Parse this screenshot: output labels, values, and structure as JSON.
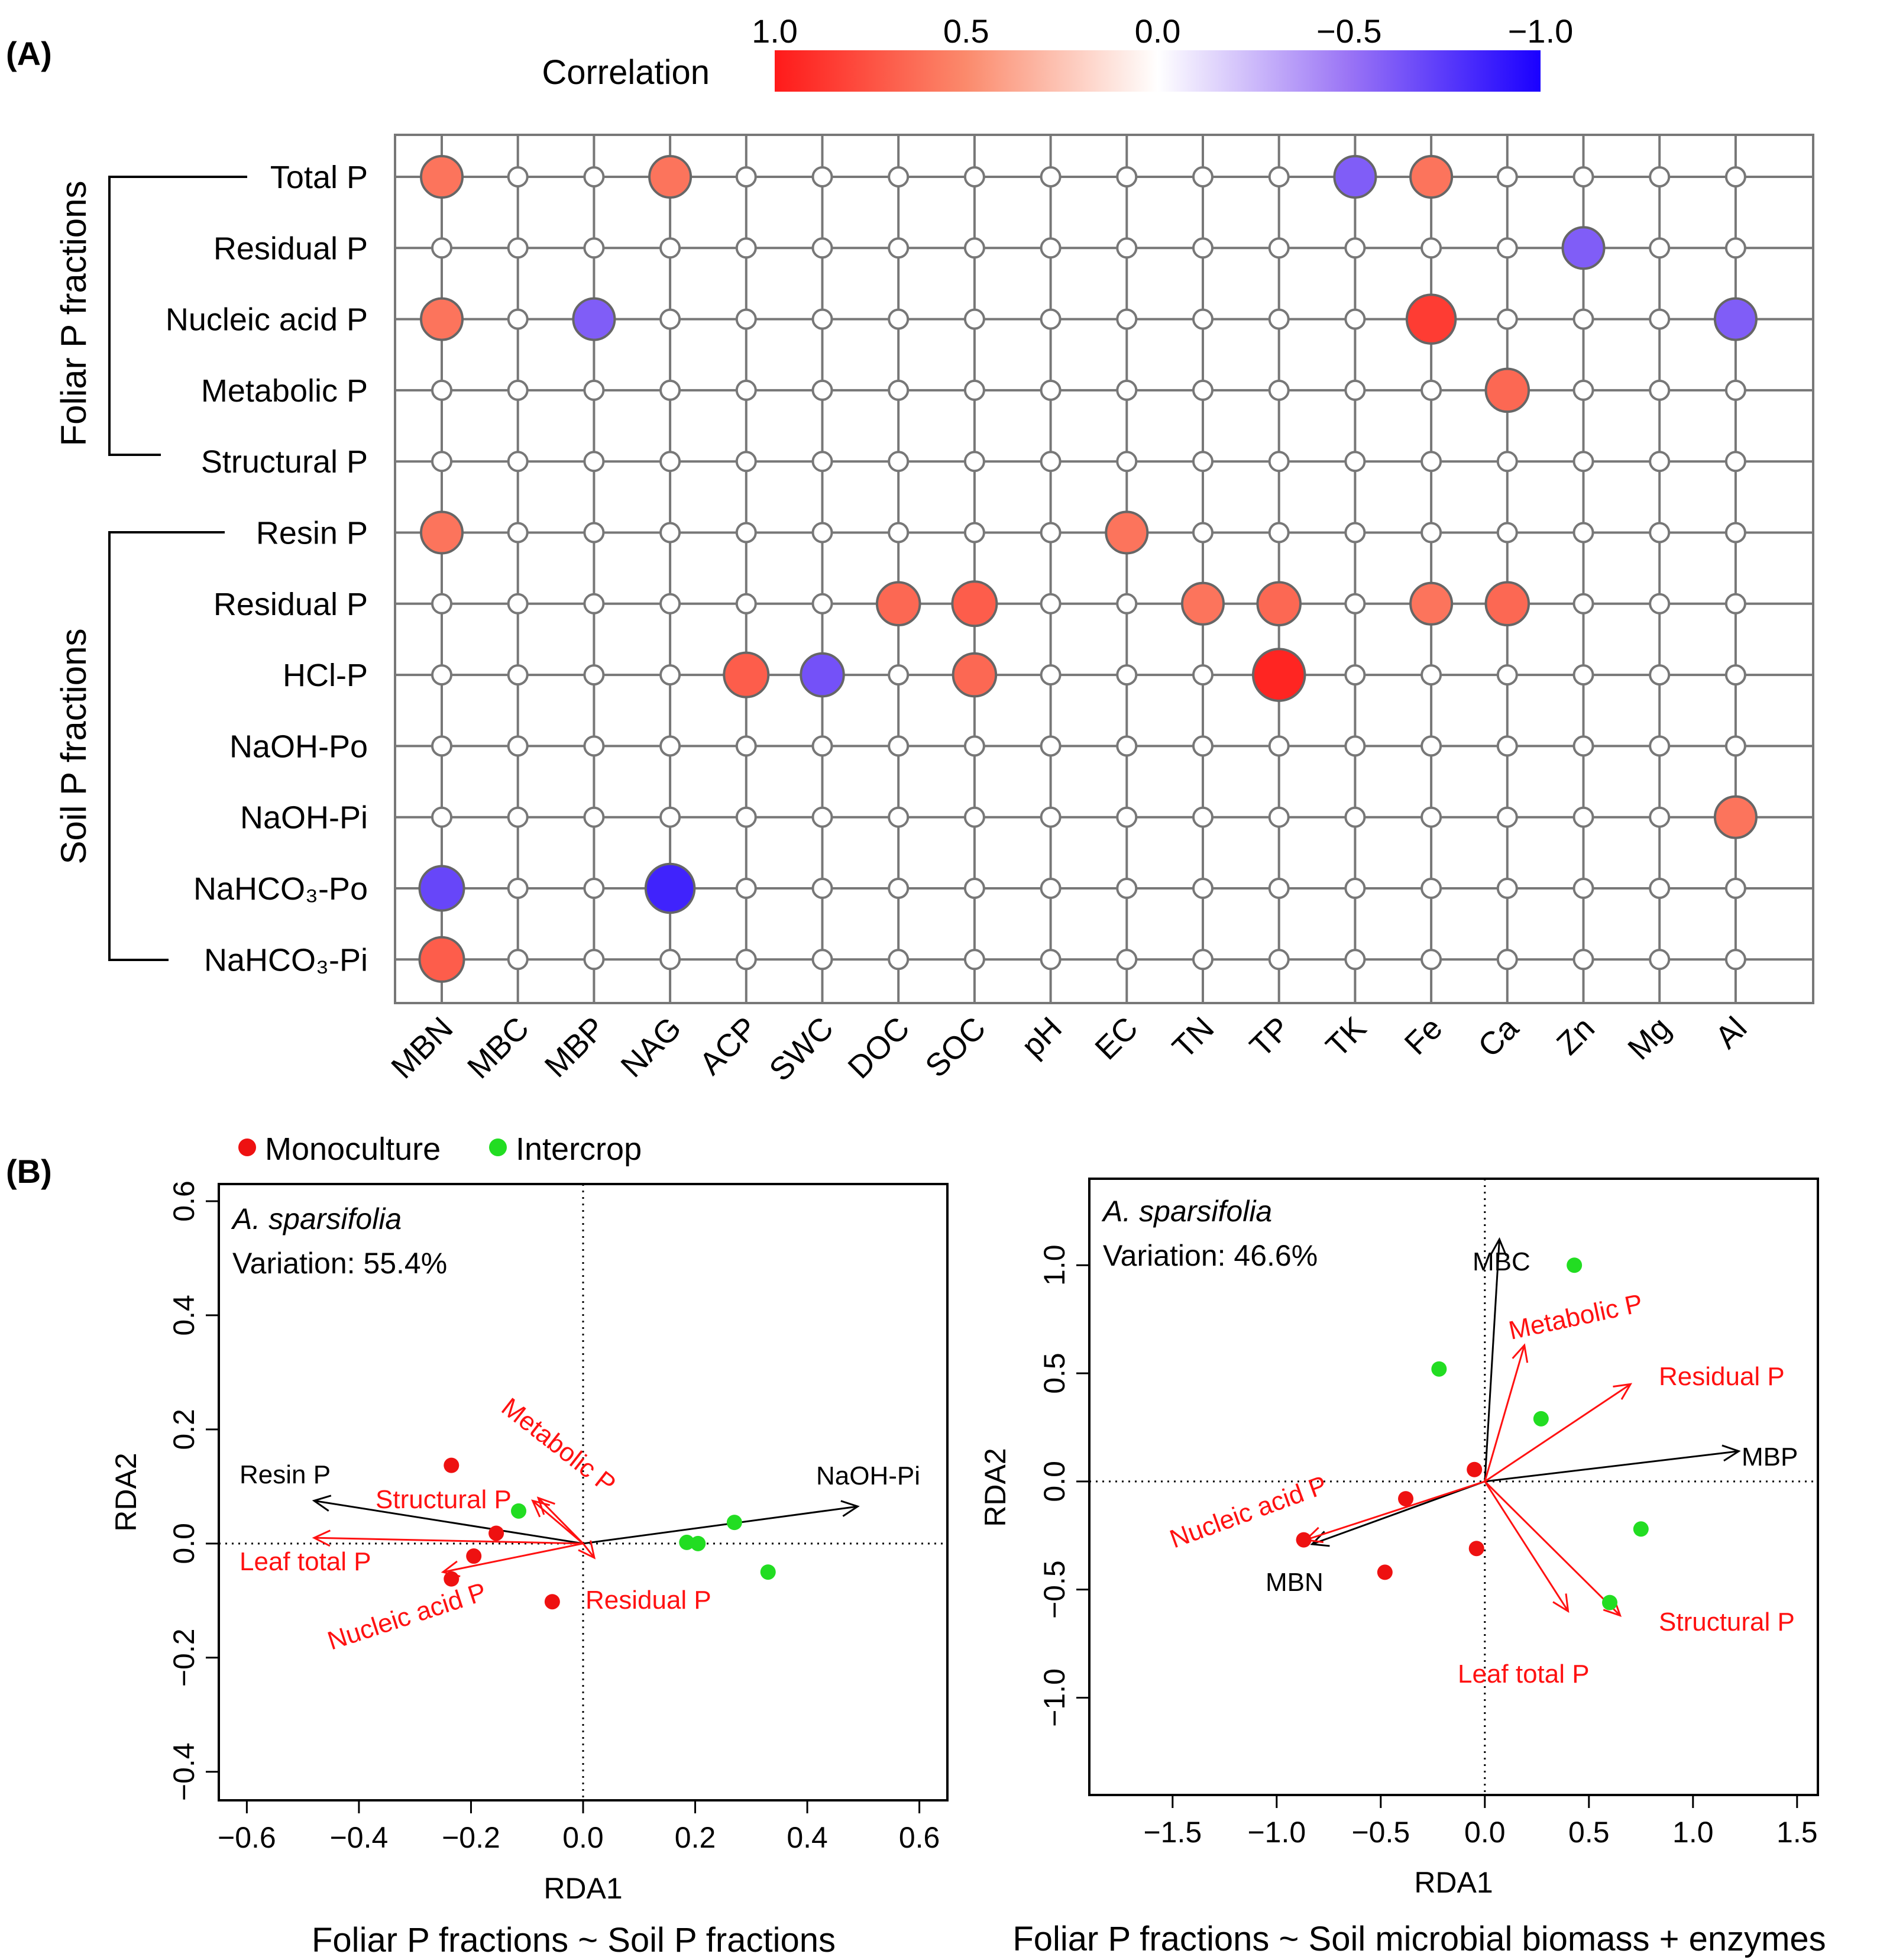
{
  "panel_a": {
    "label": "(A)",
    "colorbar": {
      "title": "Correlation",
      "ticks": [
        "1.0",
        "0.5",
        "0.0",
        "−0.5",
        "−1.0"
      ],
      "tick_values": [
        1.0,
        0.5,
        0.0,
        -0.5,
        -1.0
      ],
      "colors": [
        "#ff1a1a",
        "#fb8a6c",
        "#ffffff",
        "#9a74f5",
        "#1a00ff"
      ]
    },
    "groups": [
      {
        "label": "Foliar P fractions",
        "rows": [
          0,
          4
        ]
      },
      {
        "label": "Soil P fractions",
        "rows": [
          5,
          11
        ]
      }
    ]
  },
  "panel_b": {
    "label": "(B)",
    "legend": [
      {
        "label": "Monoculture",
        "color": "#ee1111"
      },
      {
        "label": "Intercrop",
        "color": "#22dd22"
      }
    ],
    "left": {
      "species": "A. sparsifolia",
      "variation": "Variation: 55.4%",
      "caption": "Foliar P fractions ~ Soil P fractions"
    },
    "right": {
      "species": "A. sparsifolia",
      "variation": "Variation: 46.6%",
      "caption": "Foliar P fractions ~ Soil microbial biomass + enzymes"
    }
  },
  "chart_data": [
    {
      "type": "heatmap",
      "title": "",
      "legend_title": "Correlation",
      "rows": [
        "Total P",
        "Residual P",
        "Nucleic acid P",
        "Metabolic P",
        "Structural P",
        "Resin P",
        "Residual P",
        "HCl-P",
        "NaOH-Po",
        "NaOH-Pi",
        "NaHCO₃-Po",
        "NaHCO₃-Pi"
      ],
      "columns": [
        "MBN",
        "MBC",
        "MBP",
        "NAG",
        "ACP",
        "SWC",
        "DOC",
        "SOC",
        "pH",
        "EC",
        "TN",
        "TP",
        "TK",
        "Fe",
        "Ca",
        "Zn",
        "Mg",
        "Al"
      ],
      "cells": [
        {
          "row": 0,
          "col": 0,
          "r": 0.6
        },
        {
          "row": 0,
          "col": 3,
          "r": 0.6
        },
        {
          "row": 0,
          "col": 12,
          "r": -0.6
        },
        {
          "row": 0,
          "col": 13,
          "r": 0.6
        },
        {
          "row": 1,
          "col": 15,
          "r": -0.6
        },
        {
          "row": 2,
          "col": 0,
          "r": 0.6
        },
        {
          "row": 2,
          "col": 2,
          "r": -0.6
        },
        {
          "row": 2,
          "col": 13,
          "r": 0.85
        },
        {
          "row": 2,
          "col": 17,
          "r": -0.6
        },
        {
          "row": 3,
          "col": 14,
          "r": 0.65
        },
        {
          "row": 5,
          "col": 0,
          "r": 0.6
        },
        {
          "row": 5,
          "col": 9,
          "r": 0.6
        },
        {
          "row": 6,
          "col": 6,
          "r": 0.65
        },
        {
          "row": 6,
          "col": 7,
          "r": 0.7
        },
        {
          "row": 6,
          "col": 10,
          "r": 0.6
        },
        {
          "row": 6,
          "col": 11,
          "r": 0.65
        },
        {
          "row": 6,
          "col": 13,
          "r": 0.6
        },
        {
          "row": 6,
          "col": 14,
          "r": 0.65
        },
        {
          "row": 7,
          "col": 4,
          "r": 0.7
        },
        {
          "row": 7,
          "col": 5,
          "r": -0.65
        },
        {
          "row": 7,
          "col": 7,
          "r": 0.65
        },
        {
          "row": 7,
          "col": 11,
          "r": 0.95
        },
        {
          "row": 9,
          "col": 17,
          "r": 0.6
        },
        {
          "row": 10,
          "col": 0,
          "r": -0.7
        },
        {
          "row": 10,
          "col": 3,
          "r": -0.85
        },
        {
          "row": 11,
          "col": 0,
          "r": 0.7
        }
      ]
    },
    {
      "type": "scatter",
      "title": "Foliar P fractions ~ Soil P fractions",
      "xlabel": "RDA1",
      "ylabel": "RDA2",
      "xlim": [
        -0.65,
        0.65
      ],
      "ylim": [
        -0.45,
        0.63
      ],
      "xticks": [
        -0.6,
        -0.4,
        -0.2,
        0.0,
        0.2,
        0.4,
        0.6
      ],
      "xtick_labels": [
        "−0.6",
        "−0.4",
        "−0.2",
        "0.0",
        "0.2",
        "0.4",
        "0.6"
      ],
      "yticks": [
        -0.4,
        -0.2,
        0.0,
        0.2,
        0.4,
        0.6
      ],
      "ytick_labels": [
        "−0.4",
        "−0.2",
        "0.0",
        "0.2",
        "0.4",
        "0.6"
      ],
      "series": [
        {
          "name": "Monoculture",
          "points": [
            [
              -0.235,
              0.137
            ],
            [
              -0.155,
              0.018
            ],
            [
              -0.195,
              -0.022
            ],
            [
              -0.235,
              -0.062
            ],
            [
              -0.055,
              -0.102
            ]
          ]
        },
        {
          "name": "Intercrop",
          "points": [
            [
              -0.115,
              0.057
            ],
            [
              0.185,
              0.002
            ],
            [
              0.205,
              0.0
            ],
            [
              0.27,
              0.037
            ],
            [
              0.33,
              -0.05
            ]
          ]
        }
      ],
      "arrows": [
        {
          "label": "Resin P",
          "x": -0.48,
          "y": 0.075,
          "group": "explanatory"
        },
        {
          "label": "NaOH-Pi",
          "x": 0.49,
          "y": 0.065,
          "group": "explanatory"
        },
        {
          "label": "Structural P",
          "x": -0.09,
          "y": 0.075,
          "group": "response"
        },
        {
          "label": "Metabolic P",
          "x": -0.08,
          "y": 0.08,
          "group": "response"
        },
        {
          "label": "Leaf total P",
          "x": -0.48,
          "y": 0.01,
          "group": "response"
        },
        {
          "label": "Nucleic acid P",
          "x": -0.25,
          "y": -0.05,
          "group": "response"
        },
        {
          "label": "Residual P",
          "x": 0.02,
          "y": -0.025,
          "group": "response"
        }
      ]
    },
    {
      "type": "scatter",
      "title": "Foliar P fractions ~ Soil microbial biomass + enzymes",
      "xlabel": "RDA1",
      "ylabel": "RDA2",
      "xlim": [
        -1.9,
        1.6
      ],
      "ylim": [
        -1.45,
        1.4
      ],
      "xticks": [
        -1.5,
        -1.0,
        -0.5,
        0.0,
        0.5,
        1.0,
        1.5
      ],
      "xtick_labels": [
        "−1.5",
        "−1.0",
        "−0.5",
        "0.0",
        "0.5",
        "1.0",
        "1.5"
      ],
      "yticks": [
        -1.0,
        -0.5,
        0.0,
        0.5,
        1.0
      ],
      "ytick_labels": [
        "−1.0",
        "−0.5",
        "0.0",
        "0.5",
        "1.0"
      ],
      "series": [
        {
          "name": "Monoculture",
          "points": [
            [
              -0.05,
              0.055
            ],
            [
              -0.38,
              -0.08
            ],
            [
              -0.87,
              -0.27
            ],
            [
              -0.48,
              -0.42
            ],
            [
              -0.04,
              -0.31
            ]
          ]
        },
        {
          "name": "Intercrop",
          "points": [
            [
              0.43,
              1.0
            ],
            [
              -0.22,
              0.52
            ],
            [
              0.27,
              0.29
            ],
            [
              0.75,
              -0.22
            ],
            [
              0.6,
              -0.56
            ]
          ]
        }
      ],
      "arrows": [
        {
          "label": "MBC",
          "x": 0.07,
          "y": 1.12,
          "group": "explanatory"
        },
        {
          "label": "MBP",
          "x": 1.22,
          "y": 0.14,
          "group": "explanatory"
        },
        {
          "label": "MBN",
          "x": -0.83,
          "y": -0.29,
          "group": "explanatory"
        },
        {
          "label": "Metabolic P",
          "x": 0.19,
          "y": 0.63,
          "group": "response"
        },
        {
          "label": "Residual P",
          "x": 0.7,
          "y": 0.45,
          "group": "response"
        },
        {
          "label": "Nucleic acid P",
          "x": -0.86,
          "y": -0.27,
          "group": "response"
        },
        {
          "label": "Structural P",
          "x": 0.65,
          "y": -0.62,
          "group": "response"
        },
        {
          "label": "Leaf total P",
          "x": 0.4,
          "y": -0.6,
          "group": "response"
        }
      ]
    }
  ]
}
